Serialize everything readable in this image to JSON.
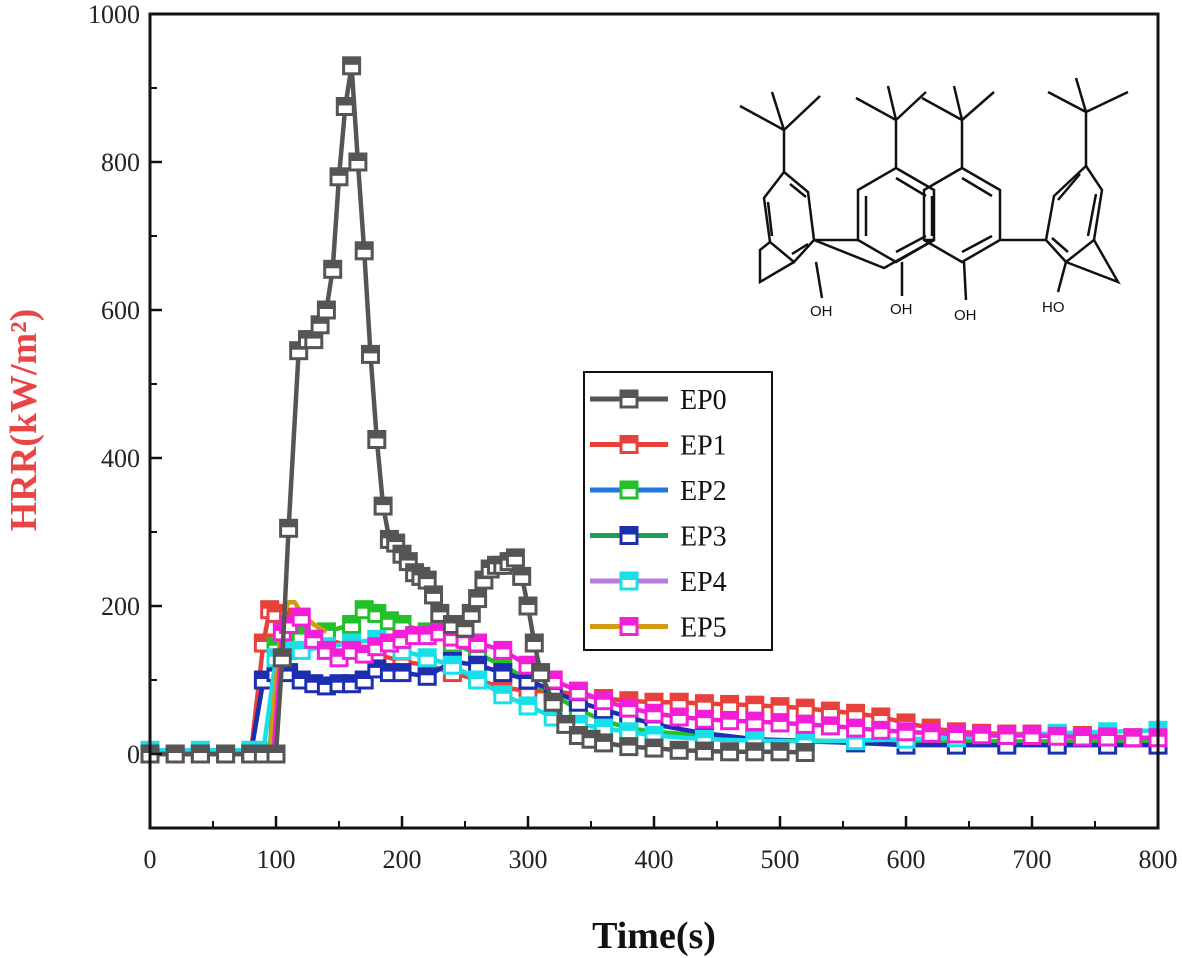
{
  "chart_data": {
    "type": "line",
    "xlabel": "Time(s)",
    "ylabel": "HRR(kW/m²)",
    "xlim": [
      0,
      800
    ],
    "ylim": [
      -100,
      1000
    ],
    "xticks": [
      "0",
      "100",
      "200",
      "300",
      "400",
      "500",
      "600",
      "700",
      "800"
    ],
    "yticks": [
      "0",
      "200",
      "400",
      "600",
      "800",
      "1000"
    ],
    "grid": false,
    "legend_position": "center",
    "series": [
      {
        "name": "EP0",
        "color": "#555555",
        "x": [
          0,
          20,
          40,
          60,
          80,
          90,
          100,
          105,
          110,
          118,
          125,
          130,
          135,
          140,
          145,
          150,
          155,
          160,
          165,
          170,
          175,
          180,
          185,
          190,
          195,
          200,
          205,
          210,
          215,
          220,
          225,
          230,
          240,
          250,
          255,
          260,
          265,
          270,
          275,
          280,
          285,
          290,
          295,
          300,
          305,
          310,
          320,
          330,
          340,
          350,
          360,
          380,
          400,
          420,
          440,
          460,
          480,
          500,
          520
        ],
        "values": [
          0,
          0,
          0,
          0,
          0,
          0,
          0,
          130,
          305,
          545,
          560,
          560,
          580,
          600,
          655,
          780,
          875,
          930,
          800,
          680,
          540,
          425,
          335,
          290,
          285,
          270,
          260,
          245,
          240,
          235,
          215,
          190,
          175,
          170,
          190,
          210,
          235,
          250,
          255,
          255,
          260,
          265,
          240,
          200,
          150,
          110,
          70,
          40,
          25,
          20,
          15,
          10,
          8,
          5,
          4,
          3,
          3,
          3,
          2
        ]
      },
      {
        "name": "EP1",
        "color": "#e8413c",
        "x": [
          0,
          40,
          80,
          90,
          95,
          100,
          110,
          120,
          140,
          160,
          180,
          200,
          220,
          240,
          260,
          280,
          300,
          320,
          340,
          360,
          380,
          400,
          420,
          440,
          460,
          480,
          500,
          520,
          540,
          560,
          580,
          600,
          620,
          640,
          660,
          680,
          700,
          720,
          740,
          760,
          780,
          800
        ],
        "values": [
          0,
          0,
          0,
          150,
          195,
          190,
          185,
          170,
          155,
          145,
          135,
          125,
          120,
          110,
          100,
          90,
          85,
          85,
          80,
          75,
          72,
          70,
          70,
          68,
          67,
          66,
          64,
          62,
          58,
          55,
          50,
          42,
          35,
          30,
          28,
          27,
          27,
          26,
          25,
          24,
          22,
          20
        ]
      },
      {
        "name": "EP2",
        "color": "#22c02a",
        "x": [
          0,
          40,
          80,
          95,
          100,
          110,
          120,
          140,
          160,
          170,
          180,
          190,
          200,
          220,
          240,
          260,
          280,
          300,
          320,
          340,
          360,
          380,
          400,
          440,
          480,
          520,
          560,
          600,
          640,
          680,
          720,
          760,
          800
        ],
        "values": [
          0,
          0,
          0,
          0,
          145,
          165,
          160,
          165,
          175,
          195,
          190,
          180,
          175,
          165,
          150,
          135,
          120,
          100,
          80,
          60,
          45,
          35,
          30,
          25,
          20,
          18,
          17,
          17,
          17,
          17,
          17,
          17,
          17
        ]
      },
      {
        "name": "EP3",
        "color": "#1b2fb0",
        "x": [
          0,
          40,
          80,
          90,
          100,
          110,
          120,
          130,
          140,
          150,
          160,
          170,
          180,
          190,
          200,
          220,
          240,
          260,
          280,
          300,
          320,
          340,
          360,
          380,
          400,
          440,
          480,
          520,
          560,
          600,
          640,
          680,
          720,
          760,
          800
        ],
        "values": [
          0,
          0,
          0,
          100,
          110,
          110,
          100,
          95,
          92,
          95,
          95,
          100,
          115,
          110,
          110,
          105,
          125,
          120,
          110,
          100,
          85,
          70,
          60,
          50,
          40,
          28,
          20,
          17,
          15,
          12,
          12,
          12,
          12,
          12,
          12
        ]
      },
      {
        "name": "EP4",
        "color": "#17e0e8",
        "x": [
          0,
          40,
          80,
          90,
          100,
          110,
          120,
          140,
          160,
          180,
          200,
          220,
          240,
          260,
          280,
          300,
          320,
          340,
          360,
          380,
          400,
          440,
          480,
          520,
          560,
          600,
          640,
          680,
          720,
          760,
          800
        ],
        "values": [
          5,
          5,
          5,
          5,
          130,
          140,
          140,
          145,
          150,
          155,
          140,
          130,
          120,
          100,
          80,
          65,
          50,
          40,
          35,
          30,
          25,
          20,
          18,
          17,
          18,
          20,
          22,
          25,
          28,
          30,
          32
        ]
      },
      {
        "name": "EP5",
        "color": "#d29b12",
        "x": [
          0,
          40,
          80,
          95,
          100,
          105,
          110,
          115,
          120,
          130,
          140
        ],
        "values": [
          0,
          0,
          0,
          0,
          100,
          185,
          205,
          205,
          190,
          175,
          165
        ]
      },
      {
        "name": "EP5",
        "color": "#f21fd7",
        "x": [
          0,
          20,
          40,
          60,
          80,
          98,
          105,
          110,
          120,
          130,
          140,
          150,
          160,
          170,
          180,
          190,
          200,
          210,
          220,
          230,
          240,
          250,
          260,
          280,
          300,
          320,
          340,
          360,
          380,
          400,
          420,
          440,
          460,
          480,
          500,
          520,
          540,
          560,
          580,
          600,
          620,
          640,
          660,
          680,
          700,
          720,
          740,
          760,
          780,
          800
        ],
        "values": [
          0,
          0,
          0,
          0,
          0,
          0,
          165,
          175,
          185,
          155,
          140,
          130,
          140,
          135,
          145,
          150,
          155,
          160,
          160,
          165,
          158,
          155,
          150,
          140,
          120,
          100,
          85,
          72,
          62,
          55,
          50,
          47,
          45,
          44,
          42,
          40,
          38,
          35,
          32,
          30,
          28,
          27,
          26,
          25,
          25,
          24,
          23,
          23,
          22,
          22
        ]
      }
    ],
    "legend": [
      "EP0",
      "EP1",
      "EP2",
      "EP3",
      "EP4",
      "EP5"
    ],
    "inset": {
      "labels": [
        "OH",
        "OH",
        "OH",
        "HO"
      ]
    }
  },
  "colors": {
    "axis": "#111111",
    "ylabel": "#e84545",
    "xlabel": "#111111"
  }
}
